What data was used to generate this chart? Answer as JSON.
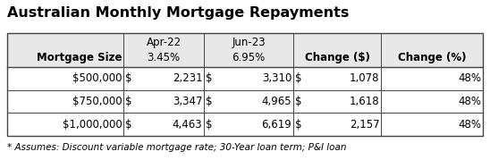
{
  "title": "Australian Monthly Mortgage Repayments",
  "footnote": "* Assumes: Discount variable mortgage rate; 30-Year loan term; P&I loan",
  "rows": [
    [
      "$500,000",
      "$",
      "2,231",
      "$",
      "3,310",
      "$",
      "1,078",
      "48%"
    ],
    [
      "$750,000",
      "$",
      "3,347",
      "$",
      "4,965",
      "$",
      "1,618",
      "48%"
    ],
    [
      "$1,000,000",
      "$",
      "4,463",
      "$",
      "6,619",
      "$",
      "2,157",
      "48%"
    ]
  ],
  "bg_color": "#ffffff",
  "header_bg": "#e8e8e8",
  "border_color": "#444444",
  "title_fontsize": 11.5,
  "body_fontsize": 8.5,
  "footnote_fontsize": 7.5,
  "fig_width": 5.48,
  "fig_height": 1.79,
  "dpi": 100
}
